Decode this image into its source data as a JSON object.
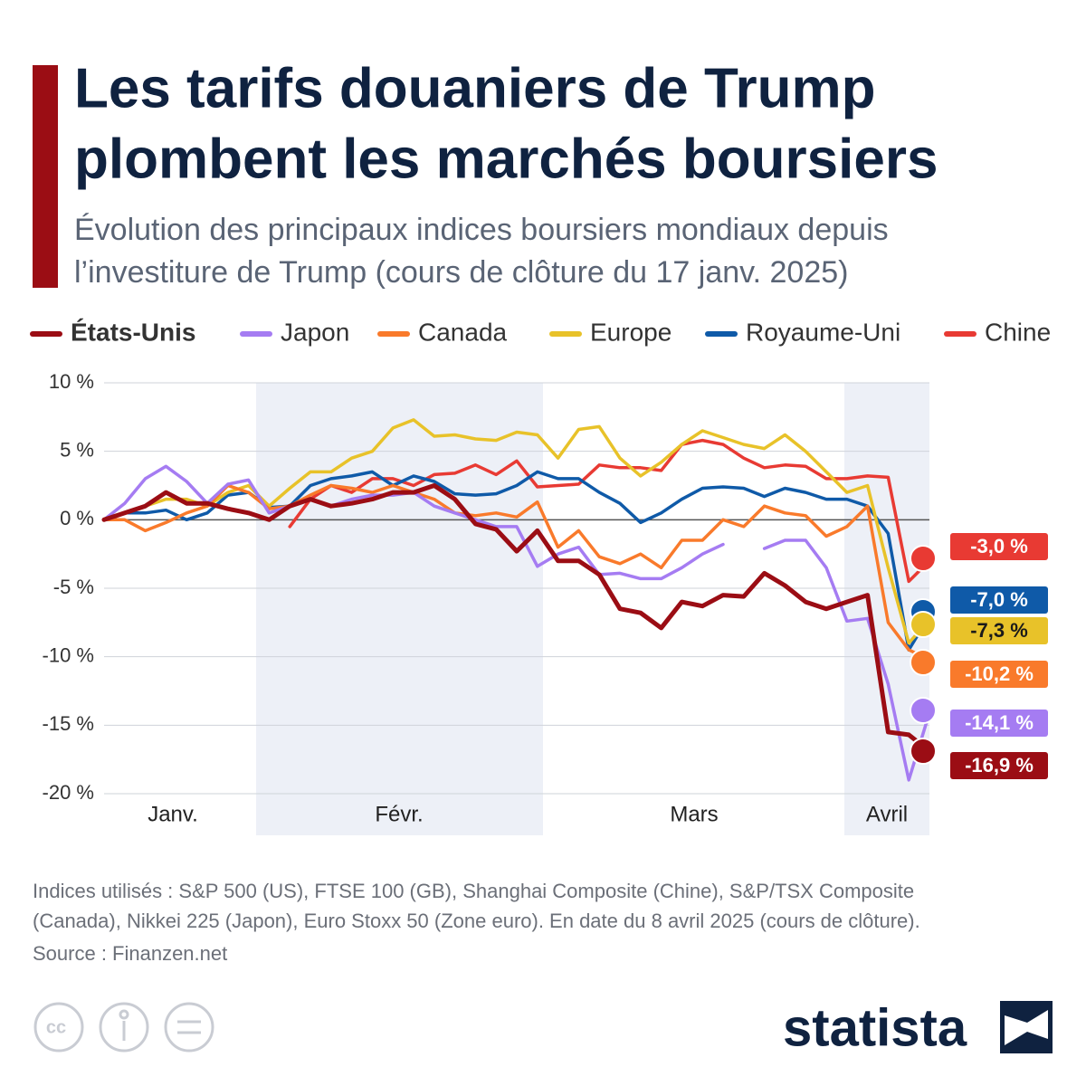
{
  "chart_data": {
    "type": "line",
    "title": [
      "Les tarifs douaniers de Trump",
      "plombent les marchés boursiers"
    ],
    "subtitle": [
      "Évolution des principaux indices boursiers mondiaux depuis",
      "l’investiture de Trump (cours de clôture du 17 janv. 2025)"
    ],
    "categories": [
      null,
      null,
      null,
      null,
      null,
      null,
      null,
      null,
      null,
      null,
      null,
      null,
      null,
      null,
      null,
      null,
      null,
      null,
      null,
      null,
      null,
      null,
      null,
      null,
      null,
      null,
      null,
      null,
      null,
      null,
      null,
      null,
      null,
      null,
      null,
      null,
      null,
      null,
      null,
      null,
      null
    ],
    "x_labels": [
      "Janv.",
      "Févr.",
      "Mars",
      "Avril"
    ],
    "ylim": [
      -20,
      10
    ],
    "yticks": [
      {
        "value": 10,
        "label": "10 %"
      },
      {
        "value": 5,
        "label": "5 %"
      },
      {
        "value": 0,
        "label": "0 %"
      },
      {
        "value": -5,
        "label": "-5 %"
      },
      {
        "value": -10,
        "label": "-10 %"
      },
      {
        "value": -15,
        "label": "-15 %"
      },
      {
        "value": -20,
        "label": "-20 %"
      }
    ],
    "grid": true,
    "series": [
      {
        "name": "États-Unis",
        "color": "#9b0d14",
        "values": [
          0,
          0.5,
          1.0,
          2.0,
          1.2,
          1.2,
          0.8,
          0.5,
          0,
          1.0,
          1.5,
          1.0,
          1.2,
          1.5,
          2.0,
          2.0,
          2.5,
          1.5,
          -0.3,
          -0.7,
          -2.3,
          -0.8,
          -3.0,
          -3.0,
          -4.0,
          -6.5,
          -6.8,
          -7.9,
          -6.0,
          -6.3,
          -5.5,
          -5.6,
          -3.9,
          -4.8,
          -6.0,
          -6.5,
          -6.0,
          -5.5,
          -15.5,
          -15.7,
          -16.9
        ],
        "value_labels": [
          null,
          null,
          null,
          null,
          null,
          null,
          null,
          null,
          null,
          null,
          null,
          null,
          null,
          null,
          null,
          null,
          null,
          null,
          null,
          null,
          null,
          null,
          null,
          null,
          null,
          null,
          null,
          null,
          null,
          null,
          null,
          null,
          null,
          null,
          null,
          null,
          null,
          null,
          null,
          null,
          "-16,9 %"
        ]
      },
      {
        "name": "Japon",
        "color": "#a57cf2",
        "values": [
          0,
          1.2,
          3.0,
          3.9,
          2.8,
          1.2,
          2.6,
          2.9,
          0.5,
          1.0,
          1.5,
          1.0,
          1.5,
          1.8,
          1.8,
          2.0,
          1.0,
          0.5,
          0.0,
          -0.5,
          -0.5,
          -3.4,
          -2.5,
          -2.0,
          -4.0,
          -3.9,
          -4.3,
          -4.3,
          -3.5,
          -2.5,
          -1.8,
          null,
          -2.1,
          -1.5,
          -1.5,
          -3.5,
          -7.4,
          -7.2,
          -12,
          -19,
          -14.1
        ],
        "value_labels": [
          null,
          null,
          null,
          null,
          null,
          null,
          null,
          null,
          null,
          null,
          null,
          null,
          null,
          null,
          null,
          null,
          null,
          null,
          null,
          null,
          null,
          null,
          null,
          null,
          null,
          null,
          null,
          null,
          null,
          null,
          null,
          null,
          null,
          null,
          null,
          null,
          null,
          null,
          null,
          null,
          "-14,1 %"
        ]
      },
      {
        "name": "Canada",
        "color": "#f97a2b",
        "values": [
          0,
          0,
          -0.8,
          -0.2,
          0.5,
          1.0,
          2.5,
          2.0,
          0.8,
          1.0,
          1.8,
          2.5,
          2.3,
          2.0,
          2.5,
          2.0,
          1.5,
          0.5,
          0.3,
          0.5,
          0.2,
          1.3,
          -2.0,
          -0.8,
          -2.7,
          -3.2,
          -2.5,
          -3.5,
          -1.5,
          -1.5,
          0.0,
          -0.5,
          1.0,
          0.5,
          0.3,
          -1.2,
          -0.5,
          1.0,
          -7.5,
          -9.5,
          -10.2
        ],
        "value_labels": [
          null,
          null,
          null,
          null,
          null,
          null,
          null,
          null,
          null,
          null,
          null,
          null,
          null,
          null,
          null,
          null,
          null,
          null,
          null,
          null,
          null,
          null,
          null,
          null,
          null,
          null,
          null,
          null,
          null,
          null,
          null,
          null,
          null,
          null,
          null,
          null,
          null,
          null,
          null,
          null,
          "-10,2 %"
        ]
      },
      {
        "name": "Europe",
        "color": "#e8c229",
        "values": [
          0,
          0.5,
          1.0,
          1.5,
          1.5,
          1.0,
          2.0,
          2.5,
          1.0,
          2.3,
          3.5,
          3.5,
          4.5,
          5.0,
          6.7,
          7.3,
          6.1,
          6.2,
          5.9,
          5.8,
          6.4,
          6.2,
          4.5,
          6.6,
          6.8,
          4.5,
          3.2,
          4.2,
          5.5,
          6.5,
          6.0,
          5.5,
          5.2,
          6.2,
          5.0,
          3.5,
          2.0,
          2.5,
          -3.5,
          -9.0,
          -7.3
        ],
        "value_labels": [
          null,
          null,
          null,
          null,
          null,
          null,
          null,
          null,
          null,
          null,
          null,
          null,
          null,
          null,
          null,
          null,
          null,
          null,
          null,
          null,
          null,
          null,
          null,
          null,
          null,
          null,
          null,
          null,
          null,
          null,
          null,
          null,
          null,
          null,
          null,
          null,
          null,
          null,
          null,
          null,
          "-7,3 %"
        ]
      },
      {
        "name": "Royaume-Uni",
        "color": "#0f5aa8",
        "values": [
          0,
          0.5,
          0.5,
          0.7,
          0.0,
          0.5,
          1.8,
          2.0,
          0.9,
          1.0,
          2.5,
          3.0,
          3.2,
          3.5,
          2.5,
          3.2,
          2.8,
          1.9,
          1.8,
          1.9,
          2.5,
          3.5,
          3.0,
          3.0,
          2.0,
          1.2,
          -0.2,
          0.5,
          1.5,
          2.3,
          2.4,
          2.3,
          1.7,
          2.3,
          2.0,
          1.5,
          1.5,
          1.0,
          -1.0,
          -9.5,
          -7.0
        ],
        "value_labels": [
          null,
          null,
          null,
          null,
          null,
          null,
          null,
          null,
          null,
          null,
          null,
          null,
          null,
          null,
          null,
          null,
          null,
          null,
          null,
          null,
          null,
          null,
          null,
          null,
          null,
          null,
          null,
          null,
          null,
          null,
          null,
          null,
          null,
          null,
          null,
          null,
          null,
          null,
          null,
          null,
          "-7,0 %"
        ]
      },
      {
        "name": "Chine",
        "color": "#e83a33",
        "values": [
          null,
          null,
          null,
          null,
          null,
          null,
          null,
          null,
          null,
          -0.5,
          1.5,
          2.5,
          2.0,
          3.0,
          3.0,
          2.5,
          3.3,
          3.4,
          4.0,
          3.3,
          4.3,
          2.4,
          2.5,
          2.6,
          4.0,
          3.8,
          3.8,
          3.6,
          5.5,
          5.8,
          5.5,
          4.5,
          3.8,
          4.0,
          3.9,
          3.0,
          3.0,
          3.2,
          3.1,
          -4.5,
          -3.0
        ],
        "value_labels": [
          null,
          null,
          null,
          null,
          null,
          null,
          null,
          null,
          null,
          null,
          null,
          null,
          null,
          null,
          null,
          null,
          null,
          null,
          null,
          null,
          null,
          null,
          null,
          null,
          null,
          null,
          null,
          null,
          null,
          null,
          null,
          null,
          null,
          null,
          null,
          null,
          null,
          null,
          null,
          null,
          "-3,0 %"
        ]
      }
    ],
    "notes": [
      "Indices utilisés : S&P 500 (US), FTSE 100 (GB), Shanghai Composite (Chine), S&P/TSX Composite",
      "(Canada), Nikkei 225 (Japon), Euro Stoxx 50 (Zone euro). En date du 8 avril 2025 (cours de clôture)."
    ],
    "source": "Source : Finanzen.net",
    "brand": "statista"
  }
}
